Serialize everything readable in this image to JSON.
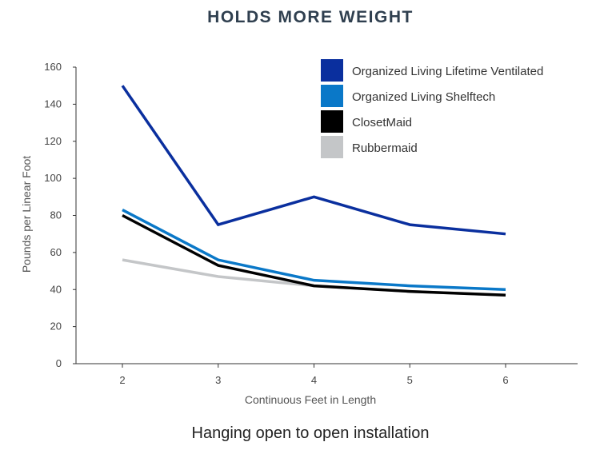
{
  "chart_data": {
    "type": "line",
    "title": "HOLDS MORE WEIGHT",
    "subtitle": "Hanging open to open installation",
    "xlabel": "Continuous Feet in Length",
    "ylabel": "Pounds per Linear Foot",
    "x": [
      2,
      3,
      4,
      5,
      6
    ],
    "x_ticks": [
      "2",
      "3",
      "4",
      "5",
      "6"
    ],
    "xlim": [
      1.5,
      6.75
    ],
    "ylim": [
      0,
      160
    ],
    "y_ticks": [
      "0",
      "20",
      "40",
      "60",
      "80",
      "100",
      "120",
      "140",
      "160"
    ],
    "grid": false,
    "legend_position": "top-right",
    "series": [
      {
        "name": "Organized Living Lifetime Ventilated",
        "color": "#0a2f9e",
        "values": [
          150,
          75,
          90,
          75,
          70
        ]
      },
      {
        "name": "Organized Living Shelftech",
        "color": "#0a78c8",
        "values": [
          83,
          56,
          45,
          42,
          40
        ]
      },
      {
        "name": "ClosetMaid",
        "color": "#000000",
        "values": [
          80,
          53,
          42,
          39,
          37
        ]
      },
      {
        "name": "Rubbermaid",
        "color": "#c4c6c8",
        "values": [
          56,
          47,
          42,
          39,
          37
        ]
      }
    ],
    "draw_order": [
      3,
      1,
      2,
      0
    ]
  }
}
